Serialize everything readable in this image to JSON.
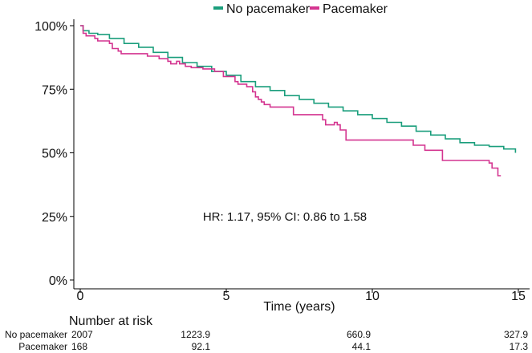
{
  "chart_data": {
    "type": "line",
    "subtype": "kaplan-meier",
    "title": "",
    "xlabel": "Time (years)",
    "ylabel": "",
    "xlim": [
      0,
      15
    ],
    "ylim": [
      0,
      100
    ],
    "x_ticks": [
      0,
      5,
      10,
      15
    ],
    "y_ticks": [
      0,
      25,
      50,
      75,
      100
    ],
    "y_tick_labels": [
      "0%",
      "25%",
      "50%",
      "75%",
      "100%"
    ],
    "legend_position": "top",
    "colors": {
      "No pacemaker": "#1a9e7c",
      "Pacemaker": "#d43590"
    },
    "annotation": "HR: 1.17, 95% CI: 0.86 to 1.58",
    "series": [
      {
        "name": "No pacemaker",
        "x": [
          0,
          0.1,
          0.3,
          0.6,
          1.0,
          1.5,
          2.0,
          2.5,
          3.0,
          3.5,
          4.0,
          4.5,
          5.0,
          5.5,
          6.0,
          6.5,
          7.0,
          7.5,
          8.0,
          8.5,
          9.0,
          9.5,
          10.0,
          10.5,
          11.0,
          11.5,
          12.0,
          12.5,
          13.0,
          13.5,
          14.0,
          14.5,
          14.9
        ],
        "values": [
          100,
          98,
          97,
          96.5,
          95,
          93,
          91.5,
          89.5,
          87.5,
          85.5,
          84,
          82,
          80.5,
          78,
          76,
          74.5,
          72.5,
          71,
          69.5,
          68,
          66.5,
          65,
          63.5,
          62,
          60.5,
          58.5,
          57,
          55.5,
          54,
          53,
          52.5,
          51.5,
          50
        ]
      },
      {
        "name": "Pacemaker",
        "x": [
          0,
          0.1,
          0.2,
          0.5,
          0.6,
          1.0,
          1.1,
          1.3,
          1.4,
          2.3,
          2.7,
          3.0,
          3.1,
          3.3,
          3.4,
          3.6,
          3.8,
          4.2,
          4.6,
          4.9,
          5.3,
          5.4,
          5.7,
          5.9,
          6.0,
          6.1,
          6.2,
          6.3,
          6.5,
          6.8,
          7.3,
          7.7,
          8.3,
          8.4,
          8.7,
          8.8,
          8.9,
          9.1,
          10.0,
          11.4,
          11.8,
          12.3,
          12.4,
          13.6,
          14.0,
          14.1,
          14.2,
          14.3,
          14.4
        ],
        "values": [
          100,
          97,
          96,
          95,
          94,
          93,
          91,
          90,
          89,
          88,
          87,
          86,
          85,
          86,
          85,
          84,
          83.5,
          83,
          82,
          80,
          78,
          77,
          76,
          74,
          72,
          71,
          70,
          69,
          68,
          68,
          65,
          65,
          63,
          61,
          62,
          61,
          59,
          55,
          55,
          53,
          51,
          51,
          47,
          47,
          46,
          44,
          44,
          41,
          41
        ]
      }
    ]
  },
  "risk_table": {
    "title": "Number at risk",
    "times": [
      0,
      5,
      10,
      15
    ],
    "rows": [
      {
        "label": "No pacemaker",
        "values": [
          "2007",
          "1223.9",
          "660.9",
          "327.9"
        ]
      },
      {
        "label": "Pacemaker",
        "values": [
          "168",
          "92.1",
          "44.1",
          "17.3"
        ]
      }
    ]
  }
}
